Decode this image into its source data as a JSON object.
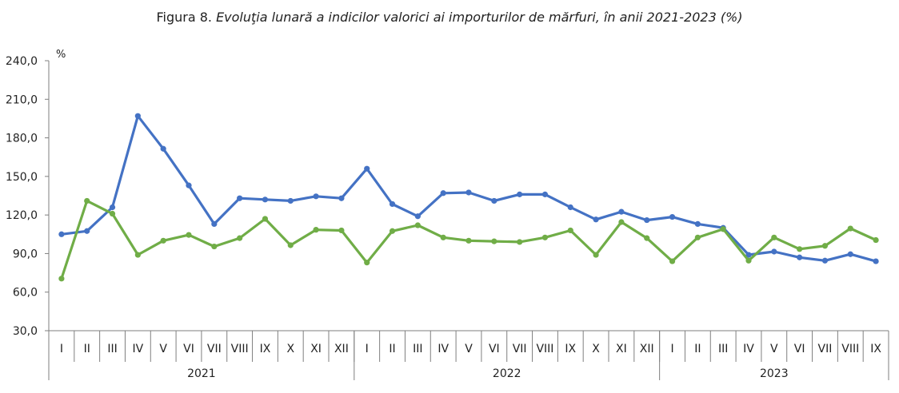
{
  "chart_data": {
    "type": "line",
    "title_prefix": "Figura 8.",
    "title": "Evoluţia lunară a indicilor valorici ai importurilor de mărfuri, în anii 2021-2023 (%)",
    "ylabel": "%",
    "xlabel": "",
    "ylim": [
      30,
      240
    ],
    "yticks": [
      30,
      60,
      90,
      120,
      150,
      180,
      210,
      240
    ],
    "ytick_labels": [
      "30,0",
      "60,0",
      "90,0",
      "120,0",
      "150,0",
      "180,0",
      "210,0",
      "240,0"
    ],
    "grid": false,
    "legend": "none",
    "categories": [
      "I",
      "II",
      "III",
      "IV",
      "V",
      "VI",
      "VII",
      "VIII",
      "IX",
      "X",
      "XI",
      "XII",
      "I",
      "II",
      "III",
      "IV",
      "V",
      "VI",
      "VII",
      "VIII",
      "IX",
      "X",
      "XI",
      "XII",
      "I",
      "II",
      "III",
      "IV",
      "V",
      "VI",
      "VII",
      "VIII",
      "IX"
    ],
    "groups": [
      {
        "label": "2021",
        "count": 12
      },
      {
        "label": "2022",
        "count": 12
      },
      {
        "label": "2023",
        "count": 9
      }
    ],
    "series": [
      {
        "color": "#4472C4",
        "values": [
          105,
          107.5,
          126,
          197,
          171.5,
          143,
          113,
          133,
          132,
          131,
          134.5,
          133,
          156,
          128.5,
          119,
          137,
          137.5,
          131,
          136,
          136,
          126,
          116.5,
          122.5,
          116,
          118.5,
          113,
          110,
          89,
          91.5,
          87,
          84.5,
          89.5,
          84
        ]
      },
      {
        "color": "#70AD47",
        "values": [
          70.5,
          131,
          121,
          89,
          100,
          104.5,
          95.5,
          102,
          117,
          96.5,
          108.5,
          108,
          83,
          107.5,
          112,
          102.5,
          100,
          99.5,
          99,
          102.5,
          108,
          89,
          114.5,
          102,
          84,
          102.5,
          109,
          84.5,
          102.5,
          93.5,
          96,
          109.5,
          100.5
        ]
      }
    ]
  }
}
